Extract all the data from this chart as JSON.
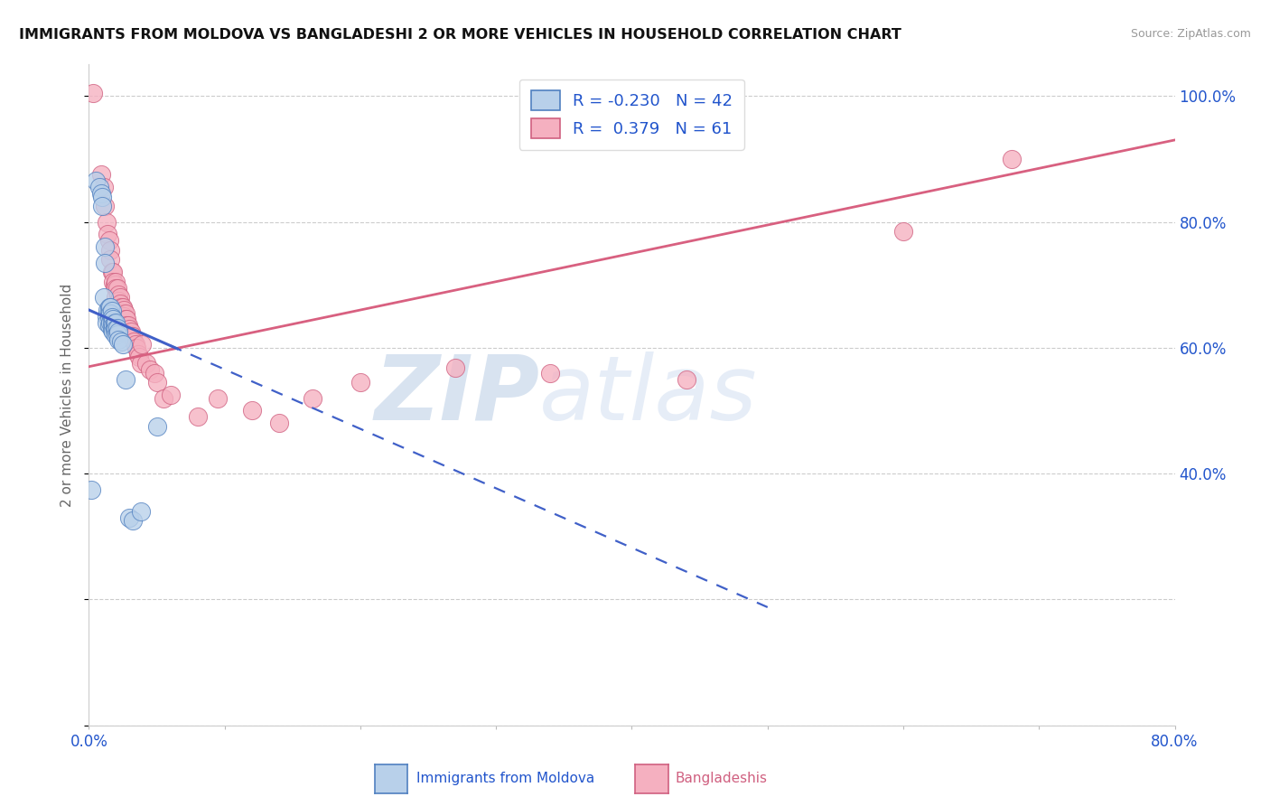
{
  "title": "IMMIGRANTS FROM MOLDOVA VS BANGLADESHI 2 OR MORE VEHICLES IN HOUSEHOLD CORRELATION CHART",
  "source": "Source: ZipAtlas.com",
  "ylabel": "2 or more Vehicles in Household",
  "xlim_min": 0.0,
  "xlim_max": 0.8,
  "ylim_min": 0.0,
  "ylim_max": 1.05,
  "legend_R1": "-0.230",
  "legend_N1": "42",
  "legend_R2": "0.379",
  "legend_N2": "61",
  "color_moldova": "#b8d0ea",
  "color_bangladesh": "#f5b0c0",
  "edge_color_moldova": "#5080c0",
  "edge_color_bangladesh": "#d06080",
  "trend_color_moldova": "#4060c8",
  "trend_color_bangladesh": "#d86080",
  "watermark_zip": "ZIP",
  "watermark_atlas": "atlas",
  "moldova_x": [
    0.002,
    0.005,
    0.008,
    0.009,
    0.01,
    0.01,
    0.011,
    0.012,
    0.012,
    0.013,
    0.013,
    0.014,
    0.015,
    0.015,
    0.015,
    0.015,
    0.016,
    0.016,
    0.016,
    0.017,
    0.017,
    0.017,
    0.017,
    0.018,
    0.018,
    0.018,
    0.019,
    0.019,
    0.02,
    0.02,
    0.02,
    0.021,
    0.021,
    0.022,
    0.022,
    0.024,
    0.025,
    0.027,
    0.03,
    0.032,
    0.038,
    0.05
  ],
  "moldova_y": [
    0.375,
    0.865,
    0.855,
    0.845,
    0.84,
    0.825,
    0.68,
    0.76,
    0.735,
    0.65,
    0.64,
    0.66,
    0.665,
    0.655,
    0.648,
    0.635,
    0.665,
    0.655,
    0.64,
    0.658,
    0.648,
    0.638,
    0.628,
    0.645,
    0.635,
    0.625,
    0.638,
    0.628,
    0.64,
    0.63,
    0.62,
    0.632,
    0.622,
    0.625,
    0.612,
    0.61,
    0.605,
    0.55,
    0.33,
    0.325,
    0.34,
    0.475
  ],
  "bangladesh_x": [
    0.003,
    0.009,
    0.011,
    0.012,
    0.013,
    0.014,
    0.015,
    0.016,
    0.016,
    0.017,
    0.018,
    0.018,
    0.019,
    0.02,
    0.02,
    0.02,
    0.021,
    0.022,
    0.022,
    0.022,
    0.023,
    0.023,
    0.024,
    0.024,
    0.025,
    0.025,
    0.026,
    0.026,
    0.027,
    0.027,
    0.028,
    0.028,
    0.029,
    0.03,
    0.03,
    0.031,
    0.032,
    0.033,
    0.034,
    0.035,
    0.036,
    0.037,
    0.038,
    0.039,
    0.042,
    0.045,
    0.048,
    0.05,
    0.055,
    0.06,
    0.08,
    0.095,
    0.12,
    0.14,
    0.165,
    0.2,
    0.27,
    0.34,
    0.44,
    0.6,
    0.68
  ],
  "bangladesh_y": [
    1.005,
    0.875,
    0.855,
    0.825,
    0.8,
    0.78,
    0.77,
    0.755,
    0.74,
    0.72,
    0.72,
    0.705,
    0.7,
    0.705,
    0.695,
    0.68,
    0.695,
    0.685,
    0.675,
    0.665,
    0.68,
    0.67,
    0.665,
    0.655,
    0.665,
    0.655,
    0.66,
    0.65,
    0.655,
    0.645,
    0.645,
    0.635,
    0.635,
    0.63,
    0.62,
    0.625,
    0.618,
    0.61,
    0.605,
    0.6,
    0.59,
    0.585,
    0.575,
    0.605,
    0.575,
    0.565,
    0.56,
    0.545,
    0.52,
    0.525,
    0.49,
    0.52,
    0.5,
    0.48,
    0.52,
    0.545,
    0.568,
    0.56,
    0.55,
    0.785,
    0.9
  ],
  "trend_mol_x0": 0.0,
  "trend_mol_y0": 0.66,
  "trend_mol_x1": 0.18,
  "trend_mol_y1": 0.49,
  "trend_ban_x0": 0.0,
  "trend_ban_y0": 0.57,
  "trend_ban_x1": 0.8,
  "trend_ban_y1": 0.93
}
